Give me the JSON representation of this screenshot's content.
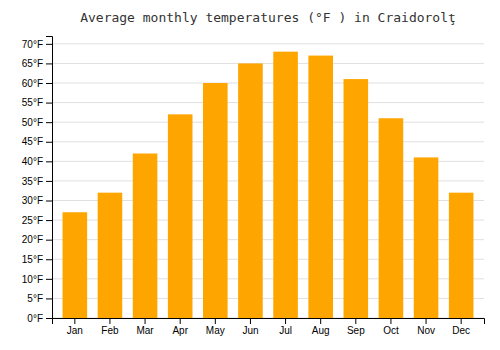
{
  "chart_data": {
    "type": "bar",
    "title": "Average monthly temperatures (°F ) in Craidorolţ",
    "categories": [
      "Jan",
      "Feb",
      "Mar",
      "Apr",
      "May",
      "Jun",
      "Jul",
      "Aug",
      "Sep",
      "Oct",
      "Nov",
      "Dec"
    ],
    "values": [
      27,
      32,
      42,
      52,
      60,
      65,
      68,
      67,
      61,
      51,
      41,
      32
    ],
    "color": "#FFA500",
    "ylim": [
      0,
      72
    ],
    "yticks": [
      {
        "value": 0,
        "label": "0°F"
      },
      {
        "value": 5,
        "label": "5°F"
      },
      {
        "value": 10,
        "label": "10°F"
      },
      {
        "value": 15,
        "label": "15°F"
      },
      {
        "value": 20,
        "label": "20°F"
      },
      {
        "value": 25,
        "label": "25°F"
      },
      {
        "value": 30,
        "label": "30°F"
      },
      {
        "value": 35,
        "label": "35°F"
      },
      {
        "value": 40,
        "label": "40°F"
      },
      {
        "value": 45,
        "label": "45°F"
      },
      {
        "value": 50,
        "label": "50°F"
      },
      {
        "value": 55,
        "label": "55°F"
      },
      {
        "value": 60,
        "label": "60°F"
      },
      {
        "value": 65,
        "label": "65°F"
      },
      {
        "value": 70,
        "label": "70°F"
      }
    ],
    "grid": true
  }
}
